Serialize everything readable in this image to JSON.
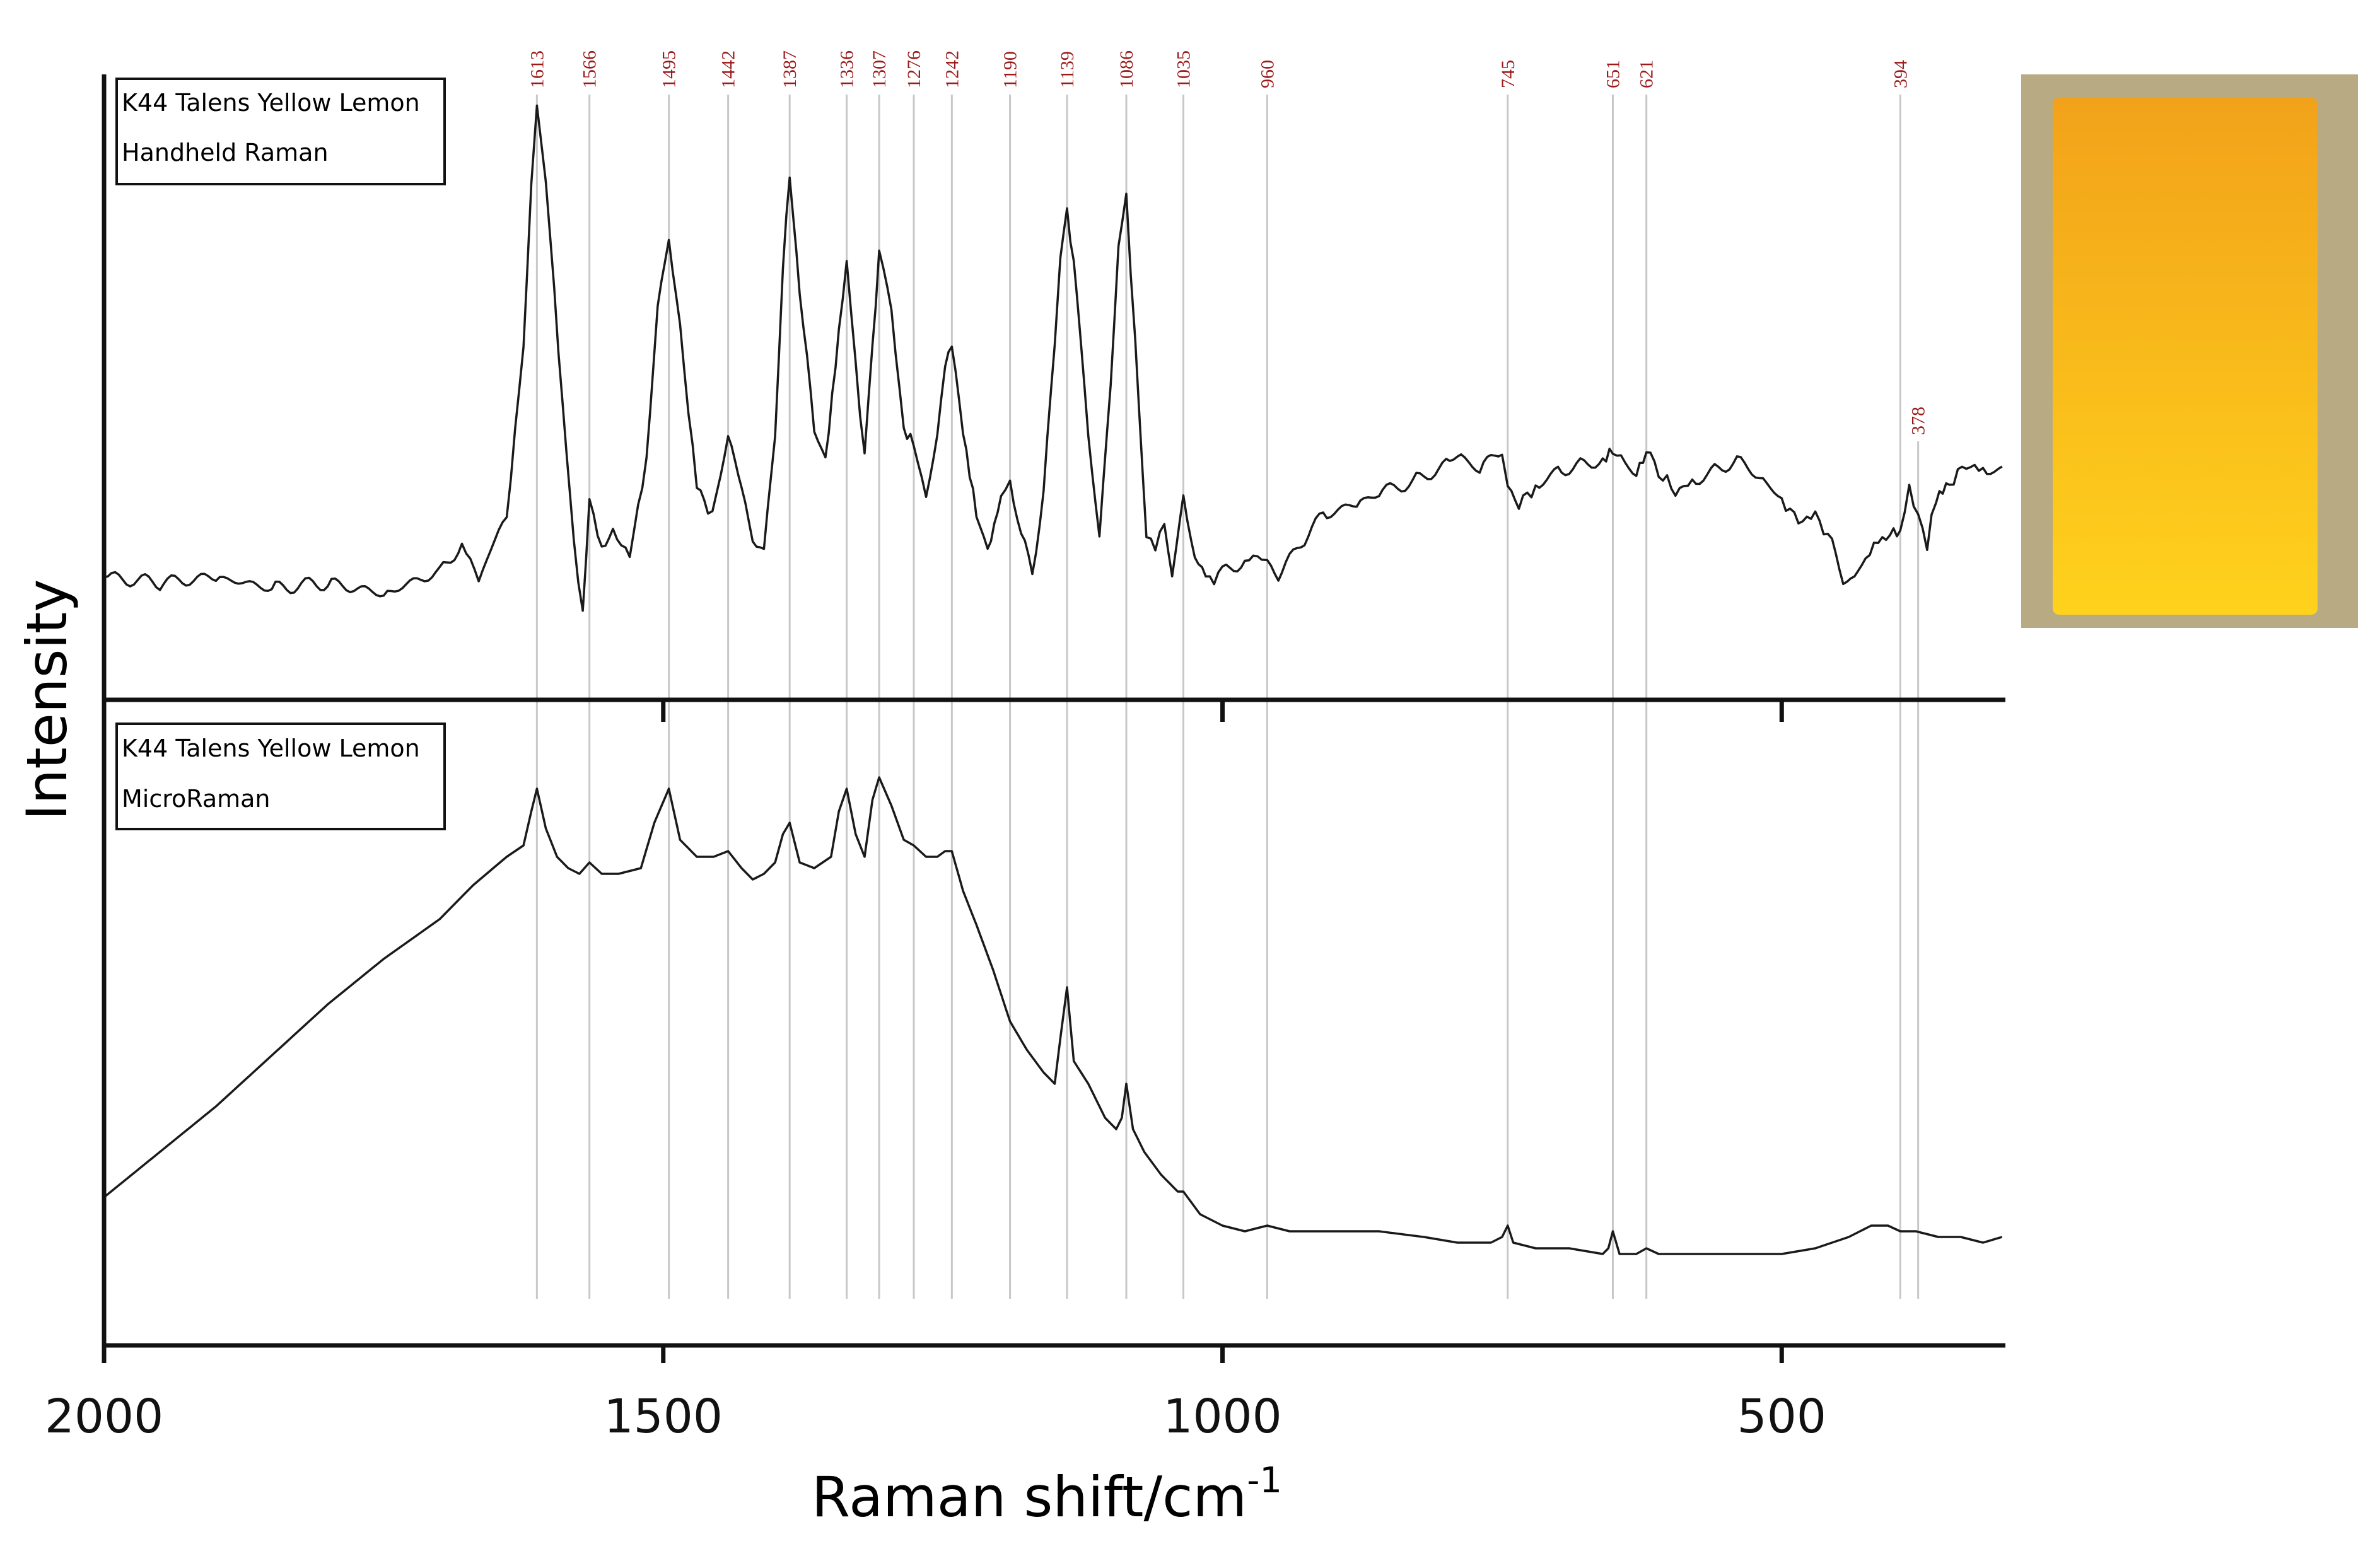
{
  "chart_data": {
    "type": "line",
    "title": "",
    "xlabel": "Raman shift/cm",
    "xlabel_superscript": "-1",
    "ylabel": "Intensity",
    "xlim": [
      2000,
      300
    ],
    "x_reversed": true,
    "x_ticks": [
      2000,
      1500,
      1000,
      500
    ],
    "grid": false,
    "peak_color": "#9b1b1b",
    "peak_line_color": "#c8c8c8",
    "line_color": "#1a1a1a",
    "peaks": [
      {
        "x": 1613,
        "label": "1613"
      },
      {
        "x": 1566,
        "label": "1566"
      },
      {
        "x": 1495,
        "label": "1495"
      },
      {
        "x": 1442,
        "label": "1442"
      },
      {
        "x": 1387,
        "label": "1387"
      },
      {
        "x": 1336,
        "label": "1336"
      },
      {
        "x": 1307,
        "label": "1307"
      },
      {
        "x": 1276,
        "label": "1276"
      },
      {
        "x": 1242,
        "label": "1242"
      },
      {
        "x": 1190,
        "label": "1190"
      },
      {
        "x": 1139,
        "label": "1139"
      },
      {
        "x": 1086,
        "label": "1086"
      },
      {
        "x": 1035,
        "label": "1035"
      },
      {
        "x": 960,
        "label": "960"
      },
      {
        "x": 745,
        "label": "745"
      },
      {
        "x": 651,
        "label": "651"
      },
      {
        "x": 621,
        "label": "621"
      },
      {
        "x": 394,
        "label": "394"
      },
      {
        "x": 378,
        "label": "378",
        "offset_label": true
      }
    ],
    "panels": [
      {
        "legend": [
          "K44 Talens Yellow Lemon",
          "Handheld Raman"
        ],
        "ylim": [
          0,
          100
        ],
        "baseline": [
          [
            2000,
            14
          ],
          [
            1950,
            13
          ],
          [
            1900,
            14
          ],
          [
            1850,
            12
          ],
          [
            1800,
            13
          ],
          [
            1750,
            11
          ],
          [
            1700,
            15
          ],
          [
            1680,
            20
          ],
          [
            1665,
            14
          ],
          [
            1640,
            25
          ],
          [
            1625,
            55
          ],
          [
            1618,
            85
          ],
          [
            1613,
            98
          ],
          [
            1605,
            85
          ],
          [
            1590,
            45
          ],
          [
            1580,
            20
          ],
          [
            1572,
            8
          ],
          [
            1566,
            27
          ],
          [
            1555,
            20
          ],
          [
            1545,
            22
          ],
          [
            1530,
            18
          ],
          [
            1515,
            35
          ],
          [
            1505,
            62
          ],
          [
            1495,
            75
          ],
          [
            1485,
            58
          ],
          [
            1470,
            30
          ],
          [
            1460,
            25
          ],
          [
            1452,
            28
          ],
          [
            1442,
            40
          ],
          [
            1430,
            30
          ],
          [
            1420,
            21
          ],
          [
            1410,
            18
          ],
          [
            1400,
            40
          ],
          [
            1393,
            70
          ],
          [
            1387,
            86
          ],
          [
            1378,
            65
          ],
          [
            1365,
            40
          ],
          [
            1355,
            35
          ],
          [
            1343,
            58
          ],
          [
            1336,
            70
          ],
          [
            1328,
            52
          ],
          [
            1320,
            35
          ],
          [
            1313,
            55
          ],
          [
            1307,
            72
          ],
          [
            1296,
            62
          ],
          [
            1285,
            40
          ],
          [
            1276,
            38
          ],
          [
            1265,
            28
          ],
          [
            1255,
            40
          ],
          [
            1248,
            52
          ],
          [
            1242,
            55
          ],
          [
            1232,
            40
          ],
          [
            1220,
            26
          ],
          [
            1210,
            18
          ],
          [
            1198,
            28
          ],
          [
            1190,
            31
          ],
          [
            1180,
            22
          ],
          [
            1170,
            14
          ],
          [
            1160,
            30
          ],
          [
            1150,
            55
          ],
          [
            1145,
            72
          ],
          [
            1139,
            80
          ],
          [
            1130,
            65
          ],
          [
            1120,
            38
          ],
          [
            1110,
            22
          ],
          [
            1100,
            48
          ],
          [
            1093,
            72
          ],
          [
            1086,
            82
          ],
          [
            1078,
            55
          ],
          [
            1068,
            22
          ],
          [
            1060,
            19
          ],
          [
            1052,
            24
          ],
          [
            1045,
            14
          ],
          [
            1038,
            25
          ],
          [
            1035,
            28
          ],
          [
            1028,
            20
          ],
          [
            1015,
            13
          ],
          [
            1000,
            15
          ],
          [
            980,
            17
          ],
          [
            965,
            18
          ],
          [
            960,
            17
          ],
          [
            950,
            14
          ],
          [
            930,
            20
          ],
          [
            910,
            25
          ],
          [
            880,
            27
          ],
          [
            860,
            29
          ],
          [
            830,
            31
          ],
          [
            800,
            34
          ],
          [
            790,
            36
          ],
          [
            770,
            33
          ],
          [
            750,
            37
          ],
          [
            745,
            30
          ],
          [
            735,
            27
          ],
          [
            720,
            30
          ],
          [
            700,
            33
          ],
          [
            680,
            34
          ],
          [
            660,
            35
          ],
          [
            651,
            37
          ],
          [
            640,
            34
          ],
          [
            630,
            33
          ],
          [
            621,
            36
          ],
          [
            610,
            33
          ],
          [
            595,
            29
          ],
          [
            580,
            31
          ],
          [
            560,
            33
          ],
          [
            540,
            35
          ],
          [
            520,
            32
          ],
          [
            500,
            28
          ],
          [
            485,
            24
          ],
          [
            470,
            25
          ],
          [
            455,
            20
          ],
          [
            445,
            14
          ],
          [
            435,
            13
          ],
          [
            425,
            18
          ],
          [
            410,
            21
          ],
          [
            400,
            23
          ],
          [
            394,
            22
          ],
          [
            386,
            30
          ],
          [
            378,
            25
          ],
          [
            370,
            20
          ],
          [
            362,
            28
          ],
          [
            350,
            31
          ],
          [
            335,
            34
          ],
          [
            320,
            33
          ],
          [
            303,
            34
          ]
        ]
      },
      {
        "legend": [
          "K44 Talens Yellow Lemon",
          "MicroRaman"
        ],
        "ylim": [
          0,
          100
        ],
        "baseline": [
          [
            2000,
            24
          ],
          [
            1950,
            32
          ],
          [
            1900,
            40
          ],
          [
            1850,
            49
          ],
          [
            1800,
            58
          ],
          [
            1750,
            66
          ],
          [
            1700,
            73
          ],
          [
            1670,
            79
          ],
          [
            1640,
            84
          ],
          [
            1625,
            86
          ],
          [
            1618,
            92
          ],
          [
            1613,
            96
          ],
          [
            1605,
            89
          ],
          [
            1595,
            84
          ],
          [
            1585,
            82
          ],
          [
            1575,
            81
          ],
          [
            1566,
            83
          ],
          [
            1555,
            81
          ],
          [
            1540,
            81
          ],
          [
            1520,
            82
          ],
          [
            1508,
            90
          ],
          [
            1495,
            96
          ],
          [
            1485,
            87
          ],
          [
            1470,
            84
          ],
          [
            1455,
            84
          ],
          [
            1442,
            85
          ],
          [
            1430,
            82
          ],
          [
            1420,
            80
          ],
          [
            1410,
            81
          ],
          [
            1400,
            83
          ],
          [
            1393,
            88
          ],
          [
            1387,
            90
          ],
          [
            1378,
            83
          ],
          [
            1365,
            82
          ],
          [
            1350,
            84
          ],
          [
            1343,
            92
          ],
          [
            1336,
            96
          ],
          [
            1328,
            88
          ],
          [
            1320,
            84
          ],
          [
            1313,
            94
          ],
          [
            1307,
            98
          ],
          [
            1296,
            93
          ],
          [
            1285,
            87
          ],
          [
            1276,
            86
          ],
          [
            1265,
            84
          ],
          [
            1255,
            84
          ],
          [
            1248,
            85
          ],
          [
            1242,
            85
          ],
          [
            1232,
            78
          ],
          [
            1220,
            72
          ],
          [
            1205,
            64
          ],
          [
            1190,
            55
          ],
          [
            1175,
            50
          ],
          [
            1160,
            46
          ],
          [
            1150,
            44
          ],
          [
            1145,
            52
          ],
          [
            1139,
            61
          ],
          [
            1133,
            48
          ],
          [
            1120,
            44
          ],
          [
            1105,
            38
          ],
          [
            1095,
            36
          ],
          [
            1090,
            38
          ],
          [
            1086,
            44
          ],
          [
            1080,
            36
          ],
          [
            1070,
            32
          ],
          [
            1055,
            28
          ],
          [
            1040,
            25
          ],
          [
            1035,
            25
          ],
          [
            1020,
            21
          ],
          [
            1000,
            19
          ],
          [
            980,
            18
          ],
          [
            960,
            19
          ],
          [
            940,
            18
          ],
          [
            900,
            18
          ],
          [
            860,
            18
          ],
          [
            820,
            17
          ],
          [
            790,
            16
          ],
          [
            760,
            16
          ],
          [
            750,
            17
          ],
          [
            745,
            19
          ],
          [
            740,
            16
          ],
          [
            720,
            15
          ],
          [
            690,
            15
          ],
          [
            660,
            14
          ],
          [
            655,
            15
          ],
          [
            651,
            18
          ],
          [
            645,
            14
          ],
          [
            630,
            14
          ],
          [
            621,
            15
          ],
          [
            610,
            14
          ],
          [
            580,
            14
          ],
          [
            540,
            14
          ],
          [
            500,
            14
          ],
          [
            470,
            15
          ],
          [
            440,
            17
          ],
          [
            420,
            19
          ],
          [
            405,
            19
          ],
          [
            394,
            18
          ],
          [
            380,
            18
          ],
          [
            360,
            17
          ],
          [
            340,
            17
          ],
          [
            320,
            16
          ],
          [
            303,
            17
          ]
        ]
      }
    ]
  },
  "thumbnail": {
    "outer_color": "#b8aa82",
    "top_color": "#f2a21a",
    "bottom_color": "#ffd21c"
  }
}
